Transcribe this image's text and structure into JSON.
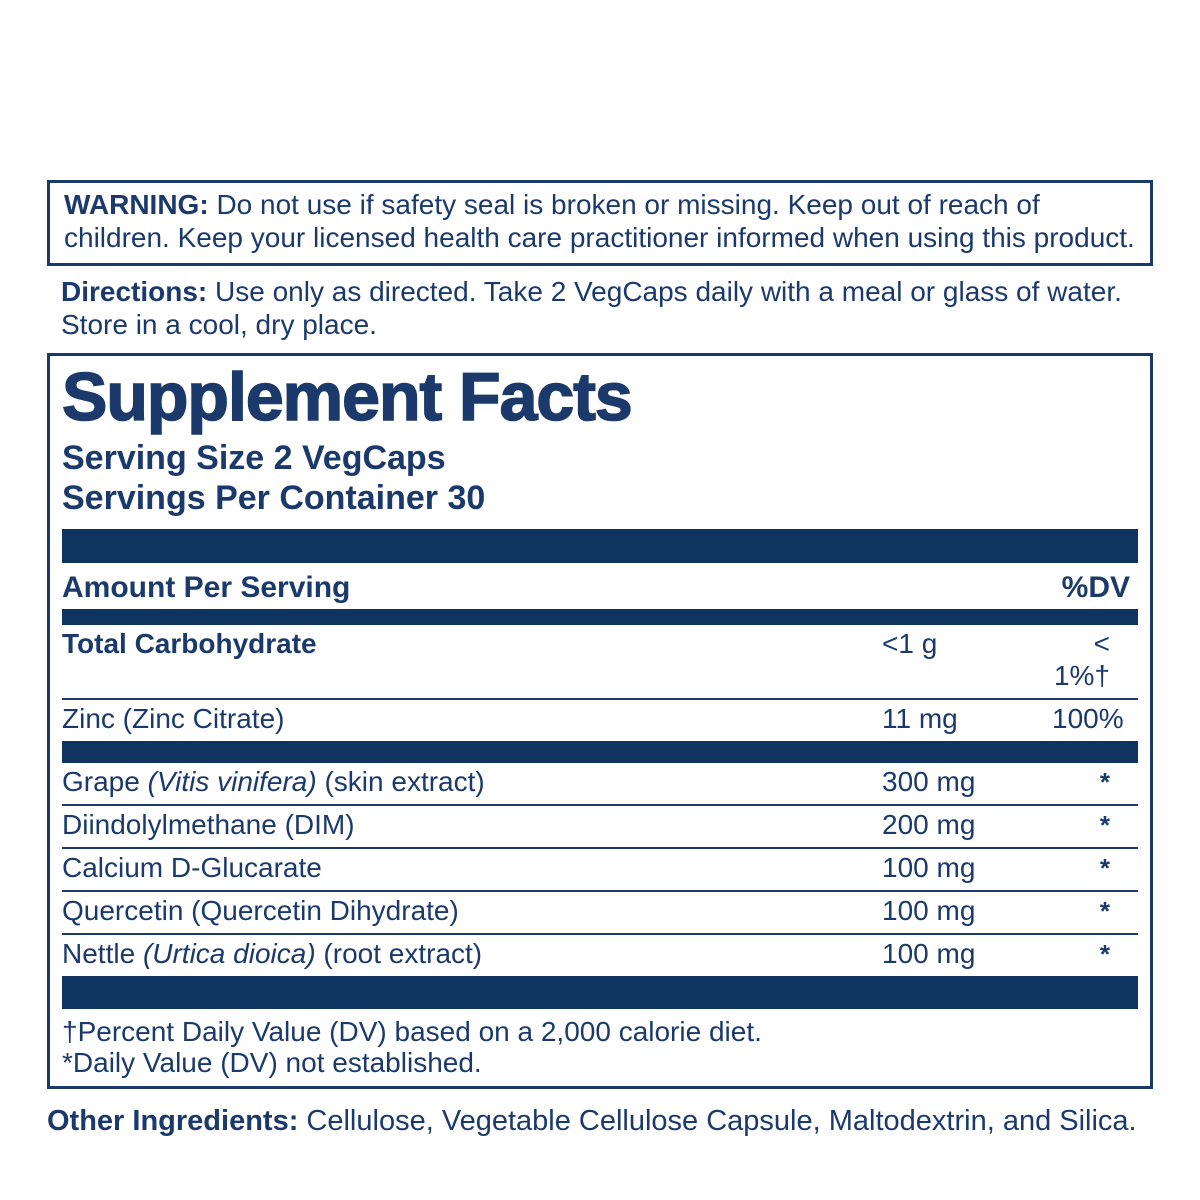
{
  "colors": {
    "ink": "#1b3a6b",
    "bar": "#0f345f",
    "background": "#ffffff"
  },
  "warning": {
    "label": "WARNING:",
    "text": "Do not use if safety seal is broken or missing. Keep out of reach of children. Keep your licensed health care practitioner informed when using this product."
  },
  "directions": {
    "label": "Directions:",
    "text": "Use only as directed. Take 2 VegCaps daily with a meal or glass of water. Store in a cool, dry place."
  },
  "supplement_facts": {
    "title": "Supplement Facts",
    "serving_size": "Serving Size 2 VegCaps",
    "servings_per_container": "Servings Per Container 30",
    "header": {
      "amount_label": "Amount Per Serving",
      "dv_label": "%DV"
    },
    "rows": [
      {
        "name": "Total Carbohydrate",
        "amount": "<1 g",
        "dv": "< 1%†"
      },
      {
        "name": "Zinc (Zinc Citrate)",
        "amount": "11 mg",
        "dv": "100%"
      }
    ],
    "ingredients": [
      {
        "pre": "Grape ",
        "italic": "(Vitis vinifera)",
        "post": " (skin extract)",
        "amount": "300 mg",
        "dv": "*"
      },
      {
        "pre": "Diindolylmethane (DIM)",
        "italic": "",
        "post": "",
        "amount": "200 mg",
        "dv": "*"
      },
      {
        "pre": "Calcium D-Glucarate",
        "italic": "",
        "post": "",
        "amount": "100 mg",
        "dv": "*"
      },
      {
        "pre": "Quercetin (Quercetin Dihydrate)",
        "italic": "",
        "post": "",
        "amount": "100 mg",
        "dv": "*"
      },
      {
        "pre": "Nettle ",
        "italic": "(Urtica dioica)",
        "post": " (root extract)",
        "amount": "100 mg",
        "dv": "*"
      }
    ],
    "footnotes": {
      "dv_note": "†Percent Daily Value (DV) based on a 2,000 calorie diet.",
      "asterisk_note": "*Daily Value (DV) not established."
    }
  },
  "other_ingredients": {
    "label": "Other Ingredients:",
    "text": "Cellulose, Vegetable Cellulose Capsule, Maltodextrin, and Silica."
  }
}
